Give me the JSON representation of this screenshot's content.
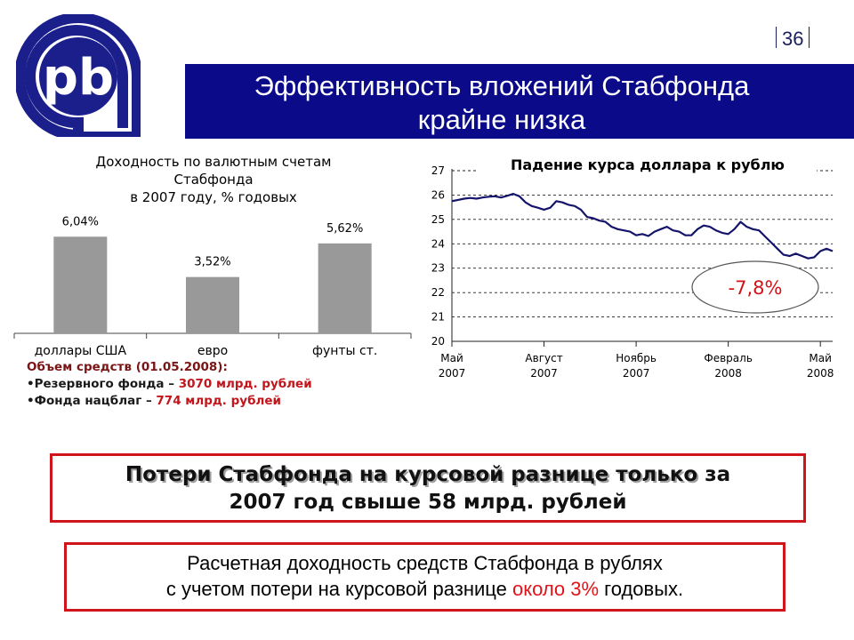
{
  "page_number": "36",
  "title": {
    "line1": "Эффективность вложений Стабфонда",
    "line2": "крайне низка"
  },
  "colors": {
    "title_bg": "#0b0b8a",
    "logo_blue": "#1a1f8c",
    "bar_gray": "#999999",
    "line_navy": "#14146b",
    "accent_red": "#d0141b"
  },
  "icons": {
    "logo": "pb-bank-logo"
  },
  "bar_chart": {
    "title_lines": [
      "Доходность по валютным счетам",
      "Стабфонда",
      "в 2007 году, % годовых"
    ]
  },
  "line_chart": {
    "title": "Падение курса доллара к рублю",
    "annotation": "-7,8%",
    "x_tick_labels": [
      [
        "Май",
        "2007"
      ],
      [
        "Август",
        "2007"
      ],
      [
        "Ноябрь",
        "2007"
      ],
      [
        "Февраль",
        "2008"
      ],
      [
        "Май",
        "2008"
      ]
    ]
  },
  "volume": {
    "heading": "Объем средств (01.05.2008):",
    "item1_lead": "•Резервного фонда – ",
    "item1_value": "3070 млрд. рублей",
    "item2_lead": "•Фонда нацблаг – ",
    "item2_value": "774 млрд. рублей"
  },
  "box1": {
    "part1": "Потери Стабфонда на курсовой разнице только",
    "part2": " за",
    "line2": "2007 год свыше 58 млрд. рублей"
  },
  "box2": {
    "line1": "Расчетная доходность средств Стабфонда в рублях",
    "line2_pre": "с учетом потери на курсовой разнице ",
    "line2_red": "около 3%",
    "line2_post": " годовых."
  },
  "chart_data": [
    {
      "type": "bar",
      "title": "Доходность по валютным счетам Стабфонда в 2007 году, % годовых",
      "categories": [
        "доллары США",
        "евро",
        "фунты ст."
      ],
      "values": [
        6.04,
        3.52,
        5.62
      ],
      "value_labels": [
        "6,04%",
        "3,52%",
        "5,62%"
      ],
      "ylim": [
        0,
        7.5
      ],
      "grid": false
    },
    {
      "type": "line",
      "title": "Падение курса доллара к рублю",
      "x_labels": [
        "Май 2007",
        "Август 2007",
        "Ноябрь 2007",
        "Февраль 2008",
        "Май 2008"
      ],
      "y_ticks": [
        20,
        21,
        22,
        23,
        24,
        25,
        26,
        27
      ],
      "ylim": [
        20,
        27
      ],
      "grid": true,
      "annotation": "-7,8%",
      "series": [
        {
          "x": [
            0,
            0.2,
            0.4,
            0.6,
            0.8,
            1.0,
            1.2,
            1.4,
            1.6,
            1.8,
            2.0,
            2.2,
            2.4,
            2.6,
            2.8,
            3.0,
            3.2,
            3.4,
            3.6,
            3.8,
            4.0,
            4.2,
            4.4,
            4.6,
            4.8,
            5.0,
            5.2,
            5.4,
            5.6,
            5.8,
            6.0,
            6.2,
            6.4,
            6.6,
            6.8,
            7.0,
            7.2,
            7.4,
            7.6,
            7.8,
            8.0,
            8.2,
            8.4,
            8.6,
            8.8,
            9.0,
            9.2,
            9.4,
            9.6,
            9.8,
            10.0,
            10.2,
            10.4,
            10.6,
            10.8,
            11.0,
            11.2,
            11.4,
            11.6,
            11.8,
            12.0,
            12.2,
            12.4
          ],
          "y": [
            25.75,
            25.8,
            25.85,
            25.88,
            25.85,
            25.9,
            25.93,
            25.95,
            25.9,
            25.97,
            26.05,
            25.95,
            25.7,
            25.55,
            25.48,
            25.4,
            25.48,
            25.75,
            25.7,
            25.6,
            25.55,
            25.4,
            25.1,
            25.05,
            24.95,
            24.9,
            24.7,
            24.6,
            24.55,
            24.5,
            24.35,
            24.4,
            24.32,
            24.5,
            24.6,
            24.7,
            24.55,
            24.5,
            24.35,
            24.35,
            24.6,
            24.75,
            24.7,
            24.55,
            24.45,
            24.4,
            24.6,
            24.9,
            24.7,
            24.6,
            24.55,
            24.3,
            24.05,
            23.8,
            23.55,
            23.5,
            23.6,
            23.5,
            23.4,
            23.45,
            23.7,
            23.8,
            23.7
          ]
        }
      ]
    }
  ]
}
